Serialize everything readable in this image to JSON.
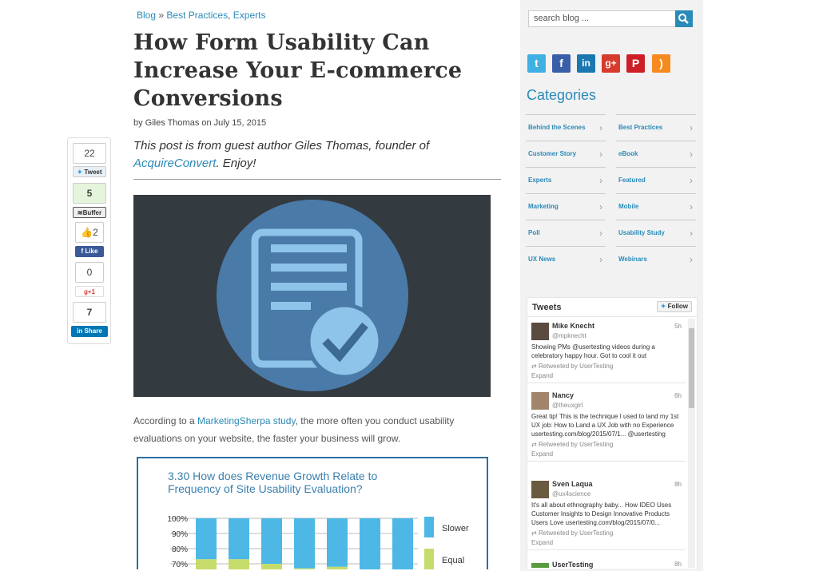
{
  "breadcrumb": {
    "home": "Blog",
    "sep": "»",
    "cat1": "Best Practices",
    "comma": ",",
    "cat2": "Experts"
  },
  "post": {
    "title": "How Form Usability Can Increase Your E-commerce Conversions",
    "byline": "by Giles Thomas on July 15, 2015",
    "intro_pre": "This post is from guest author Giles Thomas, founder of ",
    "intro_link": "AcquireConvert",
    "intro_post": ". Enjoy!",
    "para_pre": "According to a ",
    "para_link": "MarketingSherpa study",
    "para_post": ", the more often you conduct usability evaluations on your website, the faster your business will grow."
  },
  "share": {
    "tweet_count": "22",
    "tweet": "Tweet",
    "buffer_count": "5",
    "buffer": "Buffer",
    "like_count": "2",
    "like": "Like",
    "gplus_count": "0",
    "gplus": "+1",
    "linkedin_count": "7",
    "linkedin": "Share"
  },
  "sidebar": {
    "search_placeholder": "search blog ...",
    "social": [
      "twitter-icon",
      "facebook-icon",
      "linkedin-icon",
      "google-plus-icon",
      "pinterest-icon",
      "rss-icon"
    ],
    "categories_title": "Categories",
    "categories": [
      "Behind the Scenes",
      "Best Practices",
      "Customer Story",
      "eBook",
      "Experts",
      "Featured",
      "Marketing",
      "Mobile",
      "Poll",
      "Usability Study",
      "UX News",
      "Webinars"
    ]
  },
  "tweets": {
    "title": "Tweets",
    "follow": "Follow",
    "items": [
      {
        "name": "Mike Knecht",
        "handle": "@mpknecht",
        "time": "5h",
        "text": "Showing PMs @usertesting videos during a celebratory happy hour. Got to cool it out",
        "rt": "Retweeted by UserTesting",
        "expand": "Expand"
      },
      {
        "name": "Nancy",
        "handle": "@theuxgirl",
        "time": "6h",
        "text": "Great tip! This is the technique I used to land my 1st UX job: How to Land a UX Job with no Experience usertesting.com/blog/2015/07/1... @usertesting",
        "rt": "Retweeted by UserTesting",
        "expand": "Expand"
      },
      {
        "name": "Sven Laqua",
        "handle": "@ux4science",
        "time": "8h",
        "text": "It's all about ethnography baby... How IDEO Uses Customer Insights to Design Innovative Products Users Love usertesting.com/blog/2015/07/0...",
        "rt": "Retweeted by UserTesting",
        "expand": "Expand"
      },
      {
        "name": "UserTesting",
        "handle": "",
        "time": "8h",
        "text": "",
        "rt": "",
        "expand": ""
      }
    ]
  },
  "chart_data": {
    "type": "bar",
    "stacked": true,
    "title": "3.30 How does Revenue Growth Relate to Frequency of Site Usability Evaluation?",
    "yticks": [
      "100%",
      "90%",
      "80%",
      "70%"
    ],
    "ylim_visible": [
      65,
      100
    ],
    "series": [
      {
        "name": "Slower",
        "color": "#4db8e6",
        "top": [
          100,
          100,
          100,
          100,
          100,
          100,
          100
        ],
        "bottom": [
          73,
          73,
          70,
          67,
          68,
          65,
          65
        ]
      },
      {
        "name": "Equal",
        "color": "#c5dc6a",
        "top": [
          73,
          73,
          70,
          67,
          68,
          65,
          65
        ]
      }
    ]
  }
}
